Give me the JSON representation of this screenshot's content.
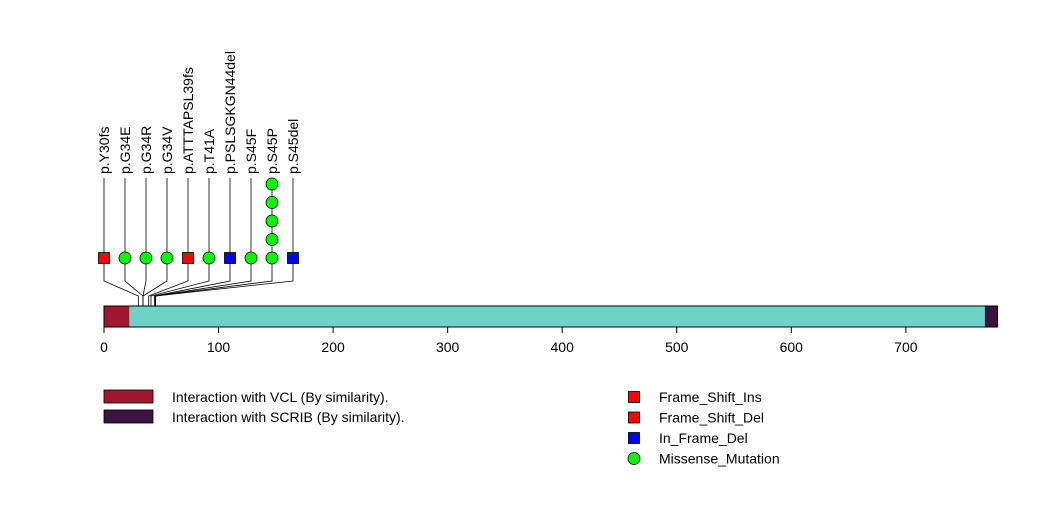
{
  "chart_data": {
    "type": "lollipop",
    "protein_length": 780,
    "x_ticks": [
      0,
      100,
      200,
      300,
      400,
      500,
      600,
      700
    ],
    "x_tick_labels": [
      "0",
      "100",
      "200",
      "300",
      "400",
      "500",
      "600",
      "700"
    ],
    "domains": [
      {
        "name": "Interaction with VCL (By similarity).",
        "start": 1,
        "end": 22,
        "color": "#A3172E"
      },
      {
        "name": "Interaction with SCRIB (By similarity).",
        "start": 770,
        "end": 780,
        "color": "#3B1240"
      }
    ],
    "backbone_color": "#6DD3C8",
    "mutations": [
      {
        "label": "p.Y30fs",
        "pos": 30,
        "type": "Frame_Shift_Ins",
        "count": 1
      },
      {
        "label": "p.G34E",
        "pos": 34,
        "type": "Missense_Mutation",
        "count": 1
      },
      {
        "label": "p.G34R",
        "pos": 34,
        "type": "Missense_Mutation",
        "count": 1
      },
      {
        "label": "p.G34V",
        "pos": 34,
        "type": "Missense_Mutation",
        "count": 1
      },
      {
        "label": "p.ATTTAPSL39fs",
        "pos": 39,
        "type": "Frame_Shift_Del",
        "count": 1
      },
      {
        "label": "p.T41A",
        "pos": 41,
        "type": "Missense_Mutation",
        "count": 1
      },
      {
        "label": "p.PSLSGKGN44del",
        "pos": 44,
        "type": "In_Frame_Del",
        "count": 1
      },
      {
        "label": "p.S45F",
        "pos": 45,
        "type": "Missense_Mutation",
        "count": 1
      },
      {
        "label": "p.S45P",
        "pos": 45,
        "type": "Missense_Mutation",
        "count": 5
      },
      {
        "label": "p.S45del",
        "pos": 45,
        "type": "In_Frame_Del",
        "count": 1
      }
    ],
    "legend": {
      "domains": [
        "Interaction with VCL (By similarity).",
        "Interaction with SCRIB (By similarity)."
      ],
      "mutation_types": [
        {
          "name": "Frame_Shift_Ins",
          "shape": "square",
          "color": "#FF0000"
        },
        {
          "name": "Frame_Shift_Del",
          "shape": "square",
          "color": "#FF0000"
        },
        {
          "name": "In_Frame_Del",
          "shape": "square",
          "color": "#0000FF"
        },
        {
          "name": "Missense_Mutation",
          "shape": "circle",
          "color": "#00FF00"
        }
      ]
    }
  }
}
